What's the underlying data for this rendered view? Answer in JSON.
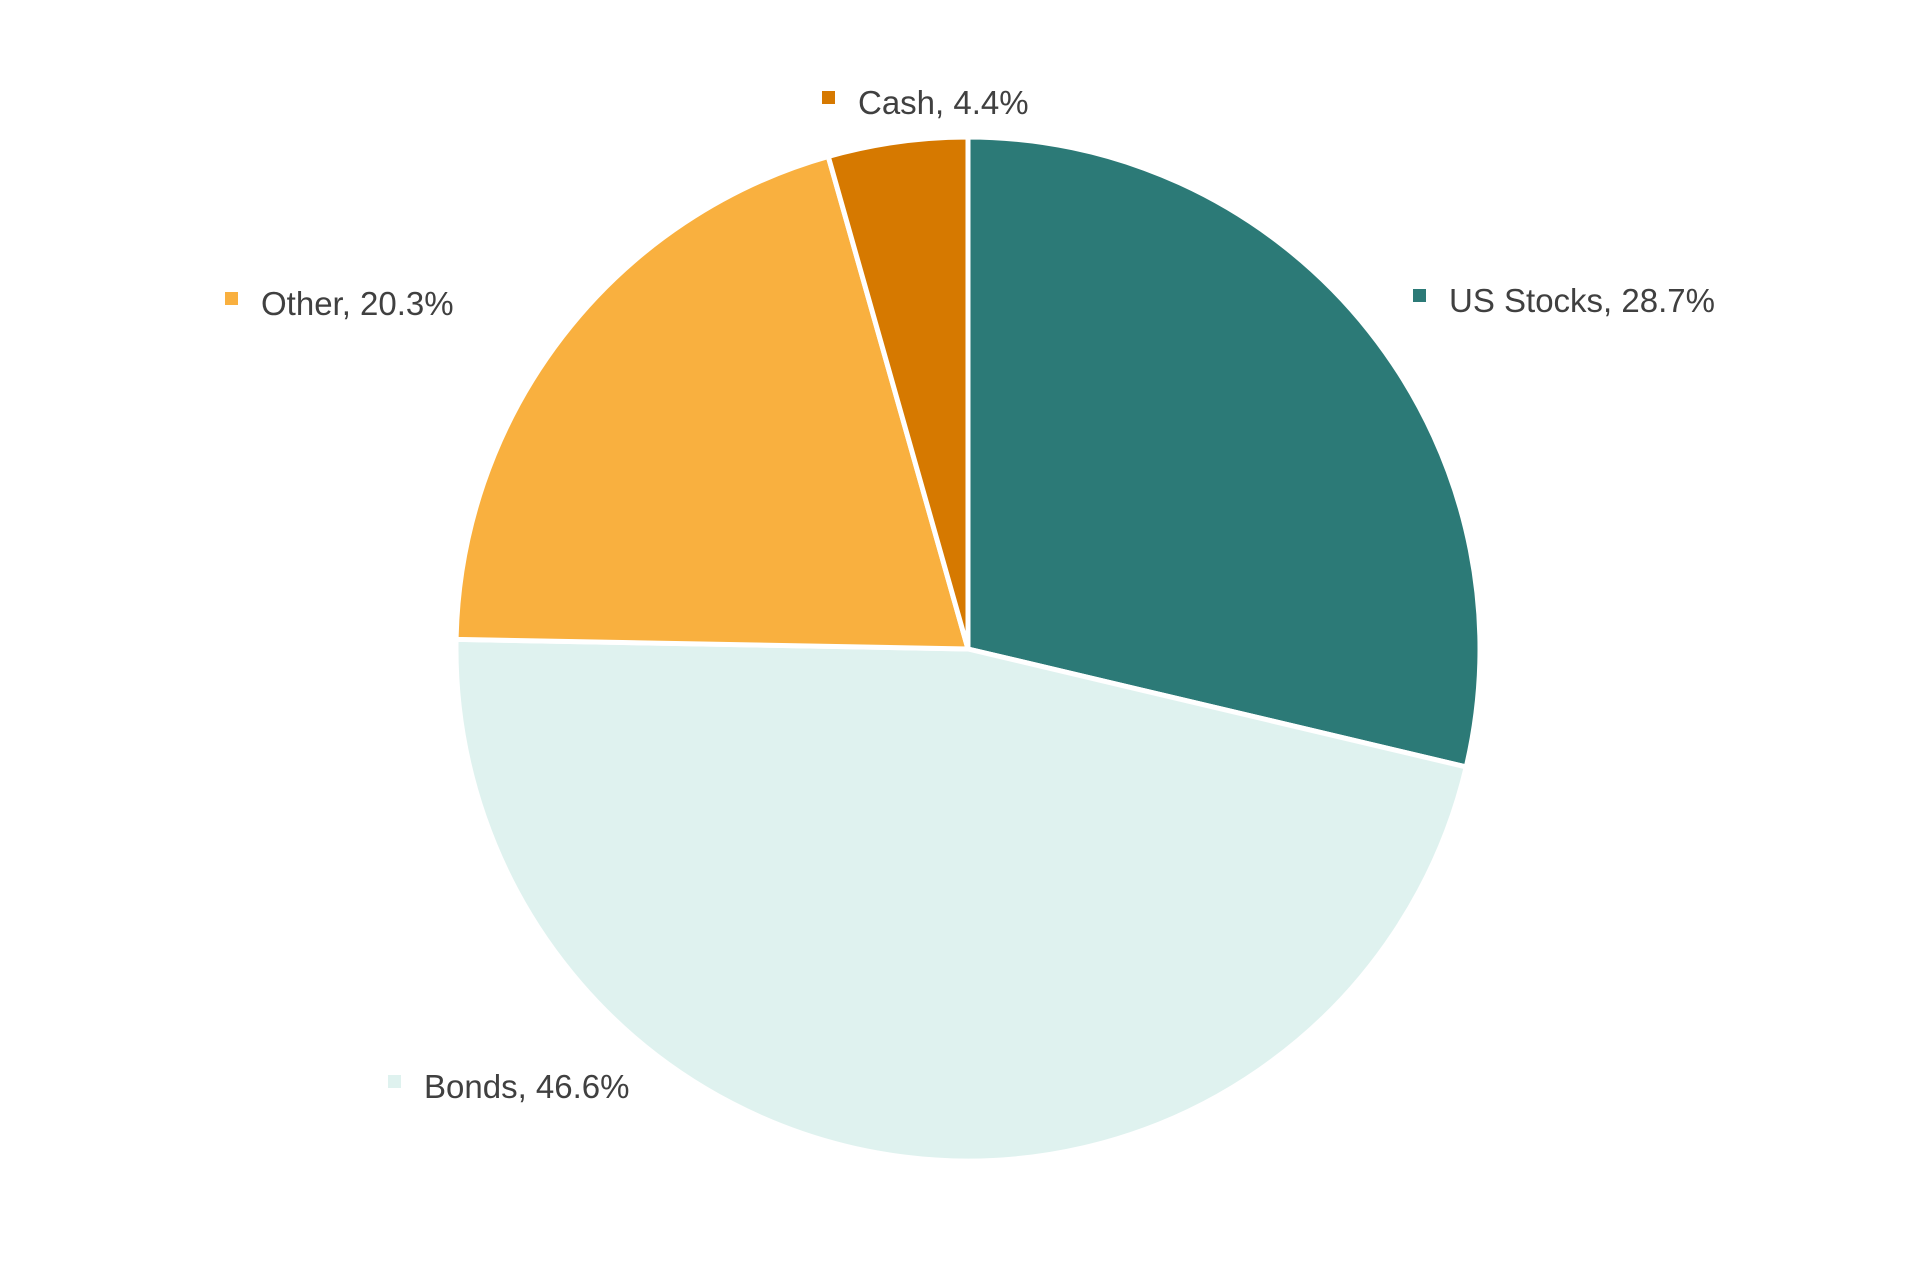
{
  "chart_data": {
    "type": "pie",
    "title": "",
    "categories": [
      "US Stocks",
      "Bonds",
      "Other",
      "Cash"
    ],
    "values": [
      28.7,
      46.6,
      20.3,
      4.4
    ],
    "labels": [
      "US Stocks, 28.7%",
      "Bonds, 46.6%",
      "Other, 20.3%",
      "Cash, 4.4%"
    ],
    "colors": [
      "#2c7a77",
      "#dff2ef",
      "#f9b03f",
      "#d67900"
    ],
    "start_angle_deg": 0,
    "direction": "clockwise",
    "legend": "none",
    "label_style": "category-name-and-percent-with-color-swatch"
  }
}
